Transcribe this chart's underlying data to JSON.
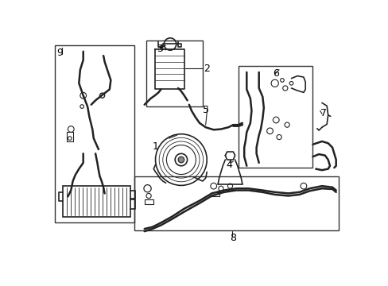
{
  "background_color": "#ffffff",
  "line_color": "#222222",
  "box_color": "#333333",
  "label_color": "#000000",
  "figsize": [
    4.89,
    3.6
  ],
  "dpi": 100,
  "xlim": [
    0,
    489
  ],
  "ylim": [
    0,
    360
  ]
}
